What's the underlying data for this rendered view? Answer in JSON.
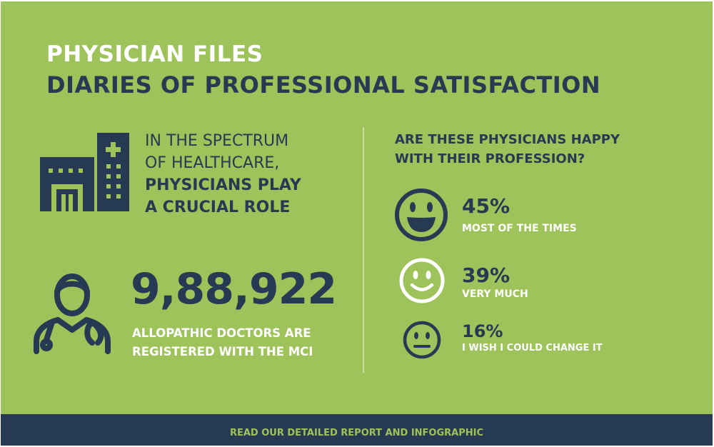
{
  "header": {
    "title_line1": "PHYSICIAN FILES",
    "title_line2": "DIARIES OF PROFESSIONAL SATISFACTION"
  },
  "spectrum": {
    "icon": "hospital-icon",
    "line1": "IN THE SPECTRUM",
    "line2": "OF HEALTHCARE,",
    "line3": "PHYSICIANS PLAY",
    "line4": "A CRUCIAL ROLE"
  },
  "doctors": {
    "icon": "doctor-icon",
    "count": "9,88,922",
    "desc_line1": "ALLOPATHIC DOCTORS ARE",
    "desc_line2": "REGISTERED WITH THE MCI"
  },
  "survey": {
    "question_line1": "ARE THESE PHYSICIANS HAPPY",
    "question_line2": "WITH THEIR PROFESSION?",
    "responses": [
      {
        "icon": "laughing-face-icon",
        "percent": "45%",
        "label": "MOST OF THE TIMES"
      },
      {
        "icon": "smiling-face-icon",
        "percent": "39%",
        "label": "VERY MUCH"
      },
      {
        "icon": "neutral-face-icon",
        "percent": "16%",
        "label": "I WISH I COULD CHANGE IT"
      }
    ]
  },
  "footer": {
    "cta": "READ OUR DETAILED REPORT AND INFOGRAPHIC"
  },
  "colors": {
    "background": "#9dc35a",
    "navy": "#263a53",
    "white": "#ffffff"
  }
}
